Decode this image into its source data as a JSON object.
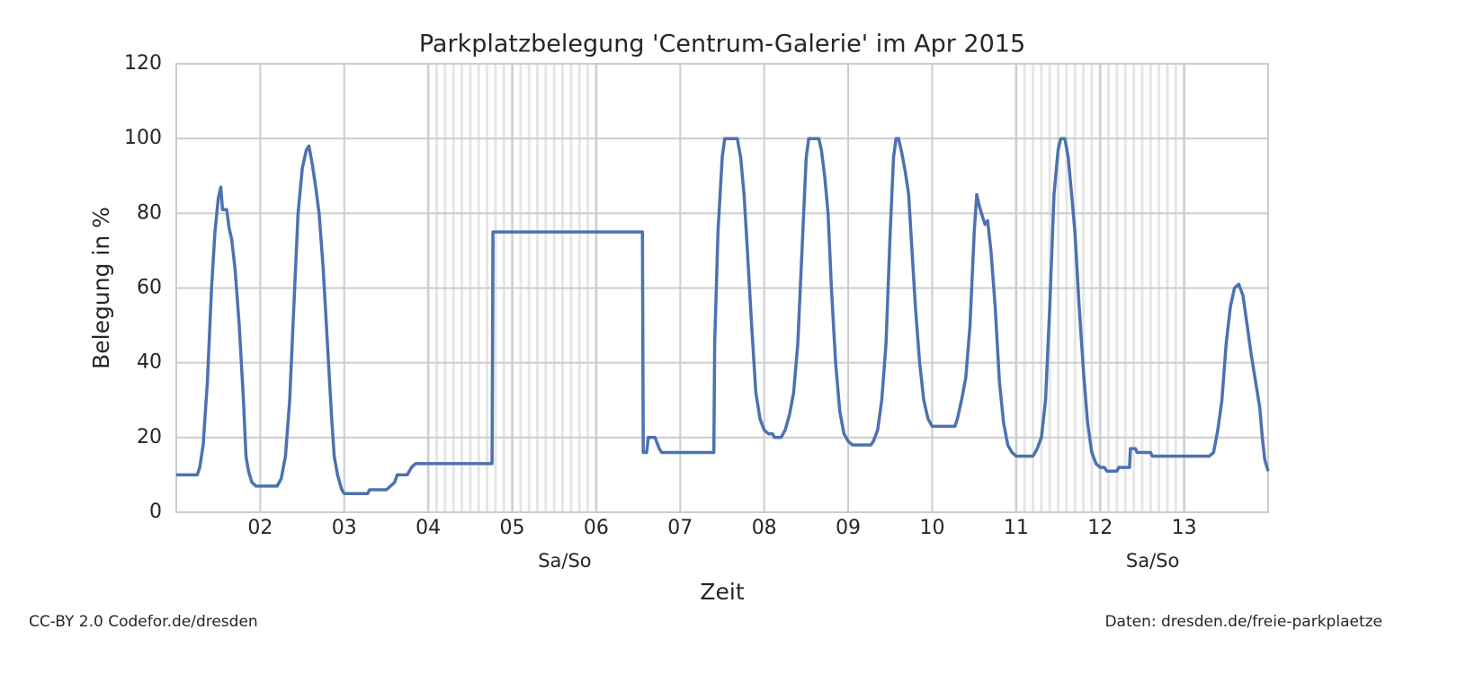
{
  "chart_data": {
    "type": "line",
    "title": "Parkplatzbelegung 'Centrum-Galerie' im Apr 2015",
    "x_label": "Zeit",
    "y_label": "Belegung in %",
    "footer_left": "CC-BY 2.0 Codefor.de/dresden",
    "footer_right": "Daten: dresden.de/freie-parkplaetze",
    "color": "#4c72b0",
    "grid": true,
    "xlim": [
      1,
      14
    ],
    "ylim": [
      0,
      120
    ],
    "xticks": [
      {
        "value": 2,
        "label": "02"
      },
      {
        "value": 3,
        "label": "03"
      },
      {
        "value": 4,
        "label": "04"
      },
      {
        "value": 5,
        "label": "05"
      },
      {
        "value": 6,
        "label": "06"
      },
      {
        "value": 7,
        "label": "07"
      },
      {
        "value": 8,
        "label": "08"
      },
      {
        "value": 9,
        "label": "09"
      },
      {
        "value": 10,
        "label": "10"
      },
      {
        "value": 11,
        "label": "11"
      },
      {
        "value": 12,
        "label": "12"
      },
      {
        "value": 13,
        "label": "13"
      }
    ],
    "yticks": [
      0,
      20,
      40,
      60,
      80,
      100,
      120
    ],
    "weekends": [
      {
        "start": 4,
        "end": 6,
        "label": "Sa/So"
      },
      {
        "start": 11,
        "end": 13,
        "label": "Sa/So"
      }
    ],
    "x": [
      1.0,
      1.25,
      1.28,
      1.32,
      1.37,
      1.42,
      1.46,
      1.5,
      1.53,
      1.55,
      1.6,
      1.63,
      1.66,
      1.7,
      1.75,
      1.8,
      1.83,
      1.86,
      1.9,
      1.95,
      2.2,
      2.25,
      2.3,
      2.35,
      2.4,
      2.45,
      2.5,
      2.55,
      2.58,
      2.62,
      2.66,
      2.7,
      2.75,
      2.8,
      2.85,
      2.88,
      2.92,
      2.97,
      3.0,
      3.28,
      3.3,
      3.5,
      3.55,
      3.6,
      3.63,
      3.75,
      3.8,
      3.85,
      4.76,
      4.77,
      6.55,
      6.56,
      6.6,
      6.62,
      6.7,
      6.75,
      6.78,
      7.4,
      7.41,
      7.45,
      7.5,
      7.53,
      7.68,
      7.72,
      7.76,
      7.8,
      7.85,
      7.9,
      7.95,
      8.0,
      8.05,
      8.1,
      8.12,
      8.2,
      8.25,
      8.3,
      8.35,
      8.4,
      8.45,
      8.5,
      8.53,
      8.65,
      8.68,
      8.72,
      8.76,
      8.8,
      8.85,
      8.9,
      8.95,
      9.0,
      9.05,
      9.27,
      9.3,
      9.35,
      9.4,
      9.45,
      9.5,
      9.54,
      9.57,
      9.6,
      9.64,
      9.68,
      9.72,
      9.76,
      9.8,
      9.85,
      9.9,
      9.95,
      10.0,
      10.27,
      10.3,
      10.35,
      10.4,
      10.45,
      10.5,
      10.53,
      10.56,
      10.6,
      10.63,
      10.66,
      10.7,
      10.75,
      10.8,
      10.85,
      10.9,
      10.95,
      11.0,
      11.2,
      11.25,
      11.3,
      11.35,
      11.4,
      11.45,
      11.5,
      11.53,
      11.58,
      11.62,
      11.66,
      11.7,
      11.75,
      11.8,
      11.85,
      11.9,
      11.95,
      12.0,
      12.05,
      12.08,
      12.2,
      12.22,
      12.35,
      12.36,
      12.42,
      12.44,
      12.6,
      12.62,
      13.3,
      13.35,
      13.4,
      13.45,
      13.5,
      13.55,
      13.6,
      13.65,
      13.7,
      13.75,
      13.8,
      13.85,
      13.9,
      13.93,
      13.96,
      14.0
    ],
    "values": [
      10,
      10,
      12,
      18,
      35,
      60,
      75,
      84,
      87,
      81,
      81,
      76,
      73,
      65,
      50,
      30,
      15,
      11,
      8,
      7,
      7,
      9,
      15,
      30,
      55,
      80,
      92,
      97,
      98,
      93,
      87,
      80,
      65,
      45,
      25,
      15,
      10,
      6,
      5,
      5,
      6,
      6,
      7,
      8,
      10,
      10,
      12,
      13,
      13,
      75,
      75,
      16,
      16,
      20,
      20,
      17,
      16,
      16,
      45,
      75,
      95,
      100,
      100,
      95,
      85,
      70,
      50,
      32,
      25,
      22,
      21,
      21,
      20,
      20,
      22,
      26,
      32,
      45,
      70,
      95,
      100,
      100,
      97,
      90,
      80,
      60,
      40,
      27,
      21,
      19,
      18,
      18,
      19,
      22,
      30,
      45,
      75,
      95,
      100,
      100,
      96,
      91,
      85,
      70,
      55,
      40,
      30,
      25,
      23,
      23,
      25,
      30,
      36,
      50,
      75,
      85,
      82,
      79,
      77,
      78,
      70,
      55,
      35,
      24,
      18,
      16,
      15,
      15,
      17,
      20,
      30,
      55,
      85,
      97,
      100,
      100,
      95,
      85,
      75,
      55,
      38,
      24,
      16,
      13,
      12,
      12,
      11,
      11,
      12,
      12,
      17,
      17,
      16,
      16,
      15,
      15,
      16,
      22,
      30,
      45,
      55,
      60,
      61,
      58,
      50,
      42,
      35,
      28,
      20,
      14,
      11
    ]
  }
}
